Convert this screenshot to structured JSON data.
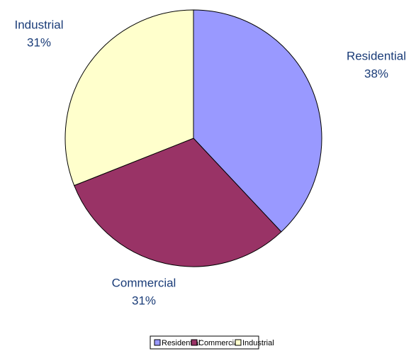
{
  "chart_data": {
    "type": "pie",
    "categories": [
      "Residential",
      "Commercial",
      "Industrial"
    ],
    "values": [
      38,
      31,
      31
    ],
    "value_labels": [
      "38%",
      "31%",
      "31%"
    ],
    "colors": [
      "#9999ff",
      "#993366",
      "#ffffcc"
    ],
    "legend": "bottom"
  }
}
